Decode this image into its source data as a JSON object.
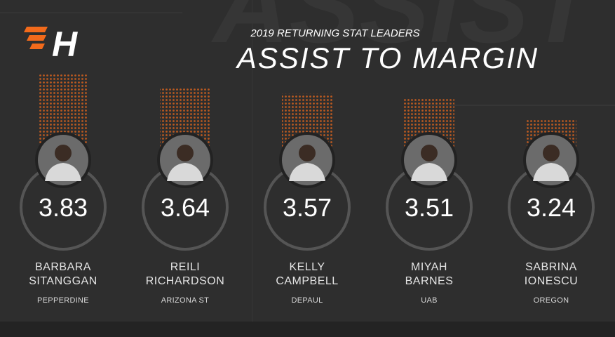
{
  "chart_data": {
    "type": "bar",
    "background_text": "ASSIST",
    "logo": "H",
    "subtitle": "2019 RETURNING STAT LEADERS",
    "title": "ASSIST TO MARGIN",
    "categories": [
      "BARBARA SITANGGAN",
      "REILI RICHARDSON",
      "KELLY CAMPBELL",
      "MIYAH BARNES",
      "SABRINA IONESCU"
    ],
    "teams": [
      "PEPPERDINE",
      "ARIZONA ST",
      "DEPAUL",
      "UAB",
      "OREGON"
    ],
    "values": [
      3.83,
      3.64,
      3.57,
      3.51,
      3.24
    ],
    "color": "#f26a1b"
  }
}
